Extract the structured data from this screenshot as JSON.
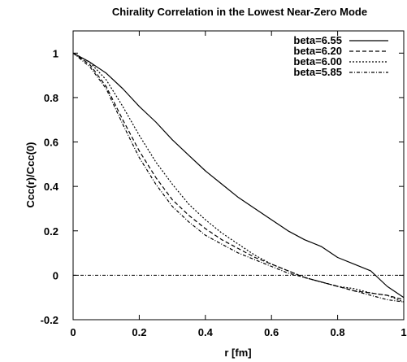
{
  "chart_data": {
    "type": "line",
    "title": "Chirality Correlation in the Lowest Near-Zero Mode",
    "xlabel": "r [fm]",
    "ylabel": "Ccc(r)/Ccc(0)",
    "xlim": [
      0,
      1
    ],
    "ylim": [
      -0.2,
      1.1
    ],
    "x_ticks": [
      0,
      0.2,
      0.4,
      0.6,
      0.8,
      1
    ],
    "x_tick_labels": [
      "0",
      "0.2",
      "0.4",
      "0.6",
      "0.8",
      "1"
    ],
    "y_ticks": [
      -0.2,
      0,
      0.2,
      0.4,
      0.6,
      0.8,
      1
    ],
    "y_tick_labels": [
      "-0.2",
      "0",
      "0.2",
      "0.4",
      "0.6",
      "0.8",
      "1"
    ],
    "grid": false,
    "legend_position": "top-right",
    "zero_line": true,
    "series": [
      {
        "name": "beta=6.55",
        "style": "solid",
        "x": [
          0,
          0.05,
          0.1,
          0.15,
          0.2,
          0.25,
          0.3,
          0.35,
          0.4,
          0.45,
          0.5,
          0.55,
          0.6,
          0.65,
          0.7,
          0.75,
          0.8,
          0.85,
          0.9,
          0.95,
          1.0
        ],
        "y": [
          1.0,
          0.96,
          0.91,
          0.84,
          0.76,
          0.69,
          0.61,
          0.54,
          0.47,
          0.41,
          0.35,
          0.3,
          0.25,
          0.2,
          0.16,
          0.13,
          0.08,
          0.05,
          0.02,
          -0.05,
          -0.1
        ]
      },
      {
        "name": "beta=6.20",
        "style": "dashed",
        "x": [
          0,
          0.05,
          0.1,
          0.15,
          0.2,
          0.25,
          0.3,
          0.35,
          0.4,
          0.45,
          0.5,
          0.55,
          0.6,
          0.65,
          0.7,
          0.75,
          0.8,
          0.85,
          0.9,
          0.95,
          1.0
        ],
        "y": [
          1.0,
          0.95,
          0.85,
          0.7,
          0.56,
          0.44,
          0.34,
          0.27,
          0.21,
          0.16,
          0.12,
          0.08,
          0.05,
          0.02,
          -0.01,
          -0.03,
          -0.05,
          -0.07,
          -0.08,
          -0.09,
          -0.11
        ]
      },
      {
        "name": "beta=6.00",
        "style": "dotted",
        "x": [
          0,
          0.05,
          0.1,
          0.15,
          0.2,
          0.25,
          0.3,
          0.35,
          0.4,
          0.45,
          0.5,
          0.55,
          0.6,
          0.65,
          0.7,
          0.75,
          0.8,
          0.85,
          0.9,
          0.95,
          1.0
        ],
        "y": [
          1.0,
          0.96,
          0.88,
          0.76,
          0.63,
          0.51,
          0.41,
          0.32,
          0.25,
          0.19,
          0.14,
          0.09,
          0.05,
          0.02,
          -0.01,
          -0.03,
          -0.05,
          -0.06,
          -0.08,
          -0.09,
          -0.12
        ]
      },
      {
        "name": "beta=5.85",
        "style": "dash-dot",
        "x": [
          0,
          0.05,
          0.1,
          0.15,
          0.2,
          0.25,
          0.3,
          0.35,
          0.4,
          0.45,
          0.5,
          0.55,
          0.6,
          0.65,
          0.7,
          0.75,
          0.8,
          0.85,
          0.9,
          0.95,
          1.0
        ],
        "y": [
          1.0,
          0.94,
          0.84,
          0.68,
          0.53,
          0.41,
          0.31,
          0.24,
          0.18,
          0.14,
          0.1,
          0.07,
          0.04,
          0.01,
          -0.01,
          -0.03,
          -0.05,
          -0.07,
          -0.09,
          -0.11,
          -0.12
        ]
      }
    ]
  }
}
